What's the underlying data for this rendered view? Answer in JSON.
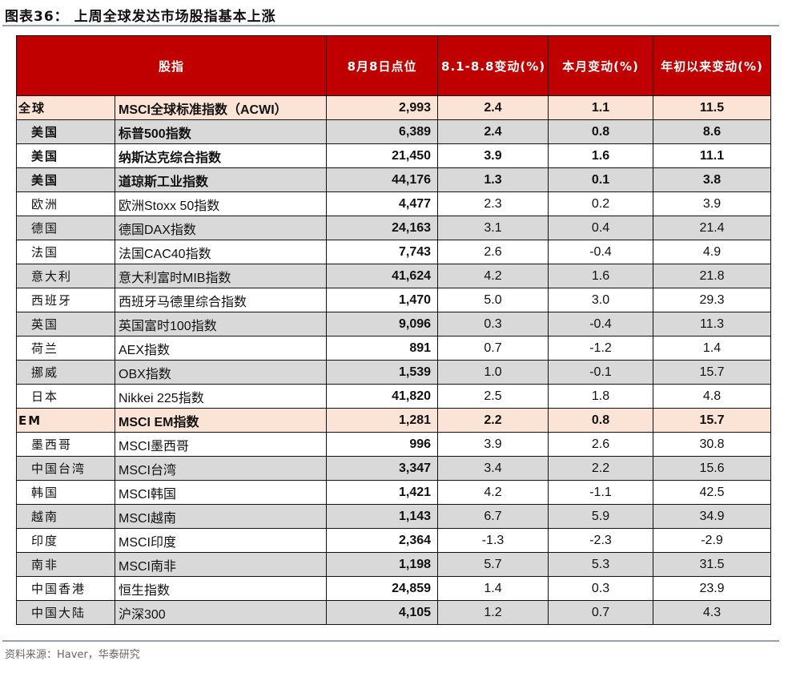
{
  "title": "图表36：  上周全球发达市场股指基本上涨",
  "headers": [
    "股指",
    "8月8日点位",
    "8.1-8.8变动(%)",
    "本月变动(%)",
    "年初以来变动(%)"
  ],
  "rows": [
    {
      "region": "全球",
      "name": "MSCI全球标准指数（ACWI）",
      "points": "2,993",
      "week": "2.4",
      "month": "1.1",
      "ytd": "11.5",
      "style": "peach bold"
    },
    {
      "region": "美国",
      "name": "标普500指数",
      "points": "6,389",
      "week": "2.4",
      "month": "0.8",
      "ytd": "8.6",
      "style": "grey bold"
    },
    {
      "region": "美国",
      "name": "纳斯达克综合指数",
      "points": "21,450",
      "week": "3.9",
      "month": "1.6",
      "ytd": "11.1",
      "style": "bold"
    },
    {
      "region": "美国",
      "name": "道琼斯工业指数",
      "points": "44,176",
      "week": "1.3",
      "month": "0.1",
      "ytd": "3.8",
      "style": "grey bold"
    },
    {
      "region": "欧洲",
      "name": "欧洲Stoxx 50指数",
      "points": "4,477",
      "week": "2.3",
      "month": "0.2",
      "ytd": "3.9",
      "style": ""
    },
    {
      "region": "德国",
      "name": "德国DAX指数",
      "points": "24,163",
      "week": "3.1",
      "month": "0.4",
      "ytd": "21.4",
      "style": "grey"
    },
    {
      "region": "法国",
      "name": "法国CAC40指数",
      "points": "7,743",
      "week": "2.6",
      "month": "-0.4",
      "ytd": "4.9",
      "style": ""
    },
    {
      "region": "意大利",
      "name": "意大利富时MIB指数",
      "points": "41,624",
      "week": "4.2",
      "month": "1.6",
      "ytd": "21.8",
      "style": "grey"
    },
    {
      "region": "西班牙",
      "name": "西班牙马德里综合指数",
      "points": "1,470",
      "week": "5.0",
      "month": "3.0",
      "ytd": "29.3",
      "style": ""
    },
    {
      "region": "英国",
      "name": "英国富时100指数",
      "points": "9,096",
      "week": "0.3",
      "month": "-0.4",
      "ytd": "11.3",
      "style": "grey"
    },
    {
      "region": "荷兰",
      "name": "AEX指数",
      "points": "891",
      "week": "0.7",
      "month": "-1.2",
      "ytd": "1.4",
      "style": ""
    },
    {
      "region": "挪威",
      "name": "OBX指数",
      "points": "1,539",
      "week": "1.0",
      "month": "-0.1",
      "ytd": "15.7",
      "style": "grey"
    },
    {
      "region": "日本",
      "name": "Nikkei 225指数",
      "points": "41,820",
      "week": "2.5",
      "month": "1.8",
      "ytd": "4.8",
      "style": ""
    },
    {
      "region": "EM",
      "name": "MSCI EM指数",
      "points": "1,281",
      "week": "2.2",
      "month": "0.8",
      "ytd": "15.7",
      "style": "peach bold"
    },
    {
      "region": "墨西哥",
      "name": "MSCI墨西哥",
      "points": "996",
      "week": "3.9",
      "month": "2.6",
      "ytd": "30.8",
      "style": ""
    },
    {
      "region": "中国台湾",
      "name": "MSCI台湾",
      "points": "3,347",
      "week": "3.4",
      "month": "2.2",
      "ytd": "15.6",
      "style": "grey"
    },
    {
      "region": "韩国",
      "name": "MSCI韩国",
      "points": "1,421",
      "week": "4.2",
      "month": "-1.1",
      "ytd": "42.5",
      "style": ""
    },
    {
      "region": "越南",
      "name": "MSCI越南",
      "points": "1,143",
      "week": "6.7",
      "month": "5.9",
      "ytd": "34.9",
      "style": "grey"
    },
    {
      "region": "印度",
      "name": "MSCI印度",
      "points": "2,364",
      "week": "-1.3",
      "month": "-2.3",
      "ytd": "-2.9",
      "style": ""
    },
    {
      "region": "南非",
      "name": "MSCI南非",
      "points": "1,198",
      "week": "5.7",
      "month": "5.3",
      "ytd": "31.5",
      "style": "grey"
    },
    {
      "region": "中国香港",
      "name": "恒生指数",
      "points": "24,859",
      "week": "1.4",
      "month": "0.3",
      "ytd": "23.9",
      "style": ""
    },
    {
      "region": "中国大陆",
      "name": "沪深300",
      "points": "4,105",
      "week": "1.2",
      "month": "0.7",
      "ytd": "4.3",
      "style": "grey"
    }
  ],
  "source": "资料来源：Haver，华泰研究",
  "colors": {
    "header": "#c00000",
    "highlight": "#fbe4d5",
    "stripe": "#d9d9d9"
  }
}
